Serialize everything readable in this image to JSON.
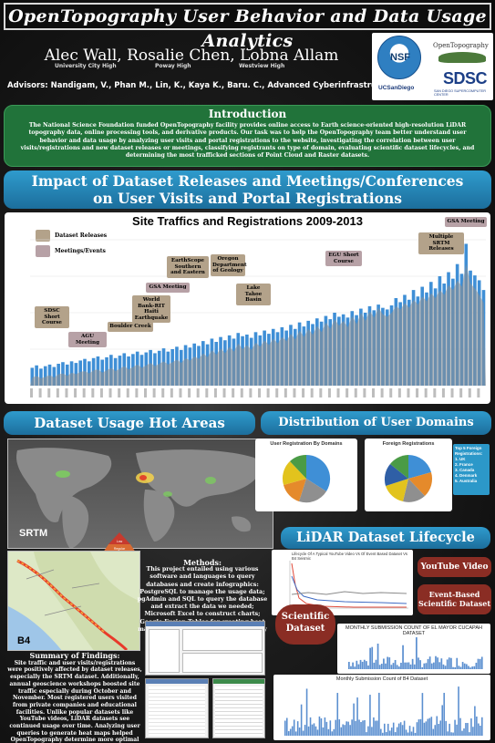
{
  "header": {
    "title": "OpenTopography User Behavior and Data Usage Analytics",
    "authors": "Alec Wall, Rosalie Chen, Lobna Allam",
    "schools": [
      "University City High",
      "Poway High",
      "Westview High"
    ],
    "advisors": "Advisors: Nandigam, V., Phan M., Lin, K., Kaya K., Baru. C., Advanced Cyberinfrastructure Group"
  },
  "logos": {
    "nsf": "NSF",
    "opentopography": "OpenTopography",
    "ucsd": "UCSanDiego",
    "sdsc": "SDSC",
    "sdsc_sub": "SAN DIEGO SUPERCOMPUTER CENTER"
  },
  "intro": {
    "heading": "Introduction",
    "text": "The National Science Foundation funded OpenTopography facility provides online access to Earth science-oriented high-resolution LiDAR topography data, online processing tools, and derivative products. Our task was to help the OpenTopography team better understand user behavior and data usage by analyzing user visits and portal registrations to the website, investigating the correlation between user visits/registrations and new dataset releases or meetings, classifying registrants on type of domain, evaluating scientific dataset lifecycles, and determining the most trafficked sections of Point Cloud and Raster datasets."
  },
  "impact": {
    "heading_line1": "Impact of Dataset Releases and Meetings/Conferences",
    "heading_line2": "on User Visits and Portal Registrations"
  },
  "chart_data": {
    "type": "bar",
    "title": "Site Traffics and Registrations 2009-2013",
    "legend": [
      "Dataset Releases",
      "Meetings/Events"
    ],
    "legend_colors": [
      "#b3a28a",
      "#b7a1a6"
    ],
    "series": [
      {
        "values": [
          22,
          25,
          21,
          24,
          26,
          23,
          27,
          29,
          26,
          30,
          28,
          31,
          33,
          30,
          34,
          36,
          32,
          35,
          38,
          34,
          37,
          40,
          36,
          39,
          42,
          38,
          41,
          44,
          40,
          43,
          46,
          42,
          45,
          48,
          44,
          50,
          47,
          52,
          49,
          55,
          51,
          58,
          54,
          60,
          56,
          62,
          58,
          65,
          61,
          63,
          59,
          66,
          62,
          68,
          64,
          70,
          66,
          72,
          68,
          75,
          70,
          78,
          73,
          80,
          76,
          83,
          79,
          86,
          82,
          90,
          85,
          88,
          84,
          92,
          87,
          95,
          90,
          98,
          93,
          100,
          96,
          94,
          99,
          108,
          103,
          112,
          106,
          118,
          110,
          122,
          115,
          128,
          120,
          135,
          126,
          140,
          132,
          150,
          138,
          175,
          142,
          136,
          130,
          118
        ]
      },
      {
        "values": [
          10,
          12,
          9,
          11,
          13,
          10,
          14,
          15,
          12,
          16,
          14,
          17,
          18,
          15,
          19,
          20,
          16,
          19,
          22,
          18,
          21,
          24,
          20,
          23,
          26,
          22,
          25,
          28,
          24,
          27,
          30,
          26,
          29,
          32,
          28,
          34,
          31,
          36,
          33,
          40,
          35,
          44,
          38,
          46,
          40,
          48,
          42,
          52,
          45,
          50,
          44,
          53,
          48,
          56,
          50,
          58,
          52,
          60,
          55,
          64,
          57,
          68,
          60,
          70,
          63,
          74,
          66,
          78,
          70,
          82,
          74,
          80,
          72,
          86,
          76,
          90,
          80,
          92,
          84,
          96,
          88,
          85,
          90,
          98,
          94,
          102,
          96,
          106,
          100,
          110,
          104,
          114,
          108,
          118,
          112,
          124,
          118,
          130,
          122,
          150,
          126,
          120,
          112,
          102
        ]
      }
    ],
    "annotations": [
      {
        "label": "SDSC Short Course",
        "kind": "ds"
      },
      {
        "label": "AGU Meeting",
        "kind": "mt"
      },
      {
        "label": "Boulder Creek",
        "kind": "ds"
      },
      {
        "label": "World Bank-RIT Haiti Earthquake",
        "kind": "ds"
      },
      {
        "label": "GSA Meeting",
        "kind": "mt"
      },
      {
        "label": "EarthScope Southern and Eastern",
        "kind": "ds"
      },
      {
        "label": "Oregon Department of Geology",
        "kind": "ds"
      },
      {
        "label": "Lake Tahoe Basin",
        "kind": "ds"
      },
      {
        "label": "EGU Short Course",
        "kind": "mt"
      },
      {
        "label": "Multiple SRTM Releases",
        "kind": "ds"
      },
      {
        "label": "GSA Meeting",
        "kind": "mt"
      }
    ]
  },
  "usage": {
    "heading": "Dataset Usage Hot Areas",
    "srtm_label": "SRTM",
    "b4_label": "B4",
    "pyramid": [
      "Low",
      "Regular",
      "Fixed Venus"
    ]
  },
  "domains": {
    "heading": "Distribution of User Domains",
    "pie1_title": "User Registration By Domains",
    "pie2_title": "Foreign Registrations",
    "top5_title": "Top 5 Foreign Registrations:",
    "top5": [
      "1. UK",
      "2. France",
      "3. Canada",
      "4. Denmark",
      "5. Australia"
    ]
  },
  "lifecycle": {
    "heading": "LiDAR Dataset Lifecycle",
    "chart_title": "Lifecycle Of A Typical YouTube Video Vs Of Event Based Dataset Vs B4 Seismic",
    "youtube_heading": "YouTube Video",
    "event_heading": "Event-Based Scientific Dataset",
    "scientific_heading": "Scientific Dataset",
    "chart2_title": "MONTHLY SUBMISSION COUNT OF EL MAYOR CUCAPAH DATASET",
    "chart3_title": "Monthly Submission Count of B4 Dataset"
  },
  "methods": {
    "heading": "Methods:",
    "text": "This project entailed using various software and languages to query databases and create infographics: PostgreSQL to manage the usage data; pgAdmin and SQL to query the database and extract the data we needed; Microsoft Excel to construct charts; Google Fusion Tables for creating heat maps to represent geospatial queries by the users."
  },
  "summary": {
    "heading": "Summary of Findings:",
    "text": "Site traffic and user visits/registrations were positively affected by dataset releases, especially the SRTM dataset. Additionally, annual geoscience workshops boosted site traffic especially during October and November. Most registered users visited from private companies and educational facilities. Unlike popular datasets like YouTube videos, LiDAR datasets see continued usage over time. Analyzing user queries to generate heat maps helped OpenTopography determine more optimal cost-effective storage solutions."
  },
  "colors": {
    "intro_green": "#21733a",
    "header_blue": "#2c98c9",
    "red_box": "#8a2d24",
    "bar_blue": "#3f8fd6",
    "bar_gray": "#8f8f8f"
  }
}
